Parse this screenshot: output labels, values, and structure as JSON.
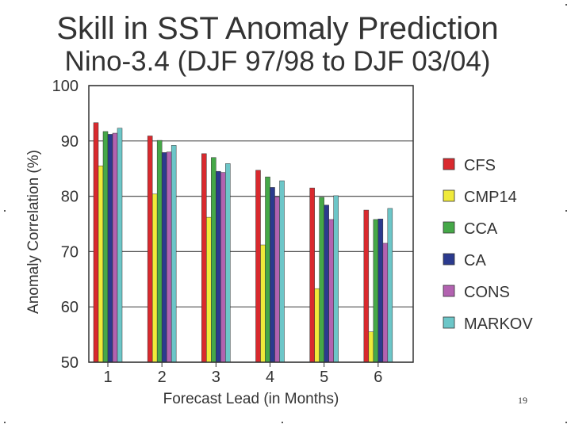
{
  "page": {
    "title": "Skill in SST Anomaly Prediction",
    "subtitle": "Nino-3.4 (DJF 97/98 to DJF 03/04)",
    "page_number": "19"
  },
  "chart_data": {
    "type": "bar",
    "title": "Skill in SST Anomaly Prediction",
    "subtitle": "Nino-3.4 (DJF 97/98 to DJF 03/04)",
    "xlabel": "Forecast Lead (in Months)",
    "ylabel": "Anomaly Correlation (%)",
    "ylim": [
      50,
      100
    ],
    "yticks": [
      50,
      60,
      70,
      80,
      90,
      100
    ],
    "grid": true,
    "legend_position": "right",
    "categories": [
      "1",
      "2",
      "3",
      "4",
      "5",
      "6"
    ],
    "series": [
      {
        "name": "CFS",
        "color": "#d9292e",
        "values": [
          93.3,
          90.9,
          87.7,
          84.7,
          81.5,
          77.5
        ]
      },
      {
        "name": "CMP14",
        "color": "#f0ea3a",
        "values": [
          85.5,
          80.4,
          76.2,
          71.2,
          63.3,
          55.5
        ]
      },
      {
        "name": "CCA",
        "color": "#45a848",
        "values": [
          91.7,
          90.1,
          87.0,
          83.5,
          79.8,
          75.8
        ]
      },
      {
        "name": "CA",
        "color": "#2b3a8e",
        "values": [
          91.2,
          87.9,
          84.5,
          81.6,
          78.4,
          75.9
        ]
      },
      {
        "name": "CONS",
        "color": "#b262b0",
        "values": [
          91.4,
          88.0,
          84.3,
          79.9,
          75.8,
          71.5
        ]
      },
      {
        "name": "MARKOV",
        "color": "#6cc6c8",
        "values": [
          92.3,
          89.2,
          85.9,
          82.8,
          80.1,
          77.8
        ]
      }
    ]
  }
}
